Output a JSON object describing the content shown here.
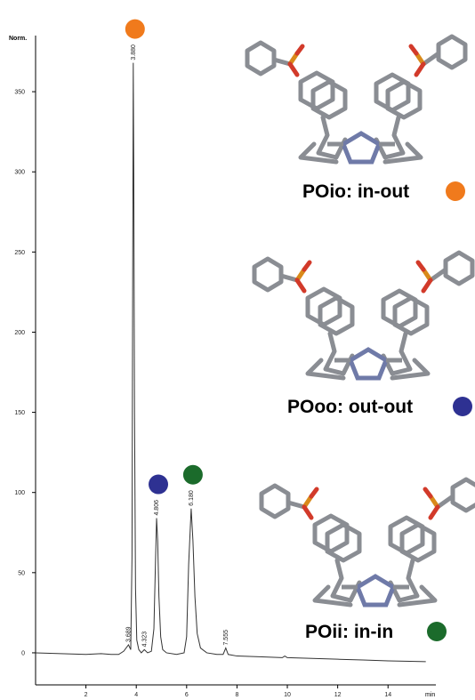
{
  "chart_data": {
    "type": "line",
    "x_label": "min",
    "y_label": "Norm.",
    "xlim": [
      0,
      15.9
    ],
    "ylim": [
      -20,
      385
    ],
    "xticks": [
      2,
      4,
      6,
      8,
      10,
      12,
      14
    ],
    "yticks": [
      0,
      50,
      100,
      150,
      200,
      250,
      300,
      350
    ],
    "color": "#333333",
    "x": [
      0,
      1,
      2,
      2.6,
      3,
      3.3,
      3.5,
      3.69,
      3.78,
      3.83,
      3.86,
      3.88,
      3.9,
      3.93,
      3.97,
      4.02,
      4.1,
      4.2,
      4.32,
      4.45,
      4.6,
      4.7,
      4.76,
      4.806,
      4.85,
      4.9,
      4.97,
      5.05,
      5.2,
      5.6,
      5.9,
      6.0,
      6.08,
      6.18,
      6.25,
      6.33,
      6.42,
      6.55,
      6.8,
      7.2,
      7.45,
      7.555,
      7.65,
      8,
      9,
      9.8,
      9.9,
      10,
      11,
      12,
      13,
      14,
      15.5
    ],
    "values": [
      0,
      -0.5,
      -1,
      -0.5,
      -1,
      -1,
      1,
      5,
      2,
      60,
      250,
      368,
      300,
      150,
      40,
      8,
      2,
      0,
      2,
      0,
      1,
      15,
      55,
      84,
      70,
      35,
      10,
      2,
      0,
      -1,
      0,
      10,
      55,
      90,
      70,
      35,
      12,
      3,
      0,
      -1,
      -1,
      3,
      -1,
      -2,
      -2.5,
      -3,
      -2,
      -3,
      -3.5,
      -4,
      -4.5,
      -5,
      -5.5
    ],
    "peaks": [
      {
        "time": 3.689,
        "label": "3.689",
        "height": 5
      },
      {
        "time": 3.88,
        "label": "3.880",
        "height": 368,
        "color": "#f07a1c"
      },
      {
        "time": 4.323,
        "label": "4.323",
        "height": 2
      },
      {
        "time": 4.806,
        "label": "4.806",
        "height": 84,
        "color": "#2e3192"
      },
      {
        "time": 6.18,
        "label": "6.180",
        "height": 90,
        "color": "#1b6b2b"
      },
      {
        "time": 7.555,
        "label": "7.555",
        "height": 3
      }
    ],
    "legend": [
      {
        "name": "POio: in-out",
        "color": "#f07a1c"
      },
      {
        "name": "POoo: out-out",
        "color": "#2e3192"
      },
      {
        "name": "POii: in-in",
        "color": "#1b6b2b"
      }
    ]
  }
}
